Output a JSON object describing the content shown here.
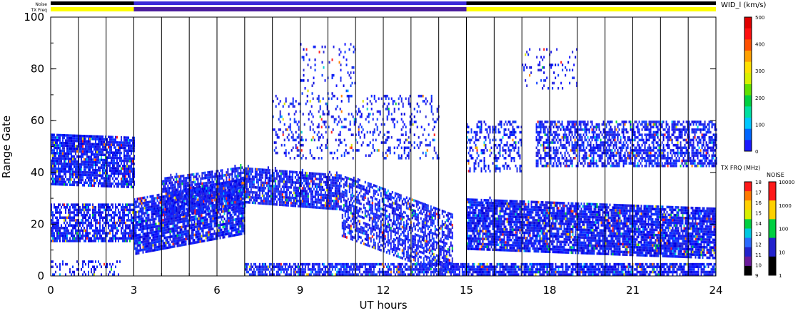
{
  "header": {
    "noise_label": "Noise",
    "txfreq_label": "TX Freq",
    "param_label": "WID_l  (km/s)"
  },
  "colorbars": {
    "param": {
      "ticks": [
        "500",
        "400",
        "300",
        "200",
        "100",
        "0"
      ],
      "colors": [
        "#1a1aff",
        "#0066ff",
        "#00c8ff",
        "#00e0a0",
        "#00d040",
        "#60e000",
        "#d8f000",
        "#ffe000",
        "#ffa000",
        "#ff5000",
        "#ff1010",
        "#e00000"
      ]
    },
    "txfrq": {
      "title": "TX FRQ (MHz)",
      "ticks": [
        "18",
        "17",
        "16",
        "15",
        "14",
        "13",
        "12",
        "11",
        "10",
        "9"
      ],
      "colors": [
        "#000000",
        "#6a1a9a",
        "#2222cc",
        "#2a6aff",
        "#00c8e0",
        "#00d040",
        "#d8f000",
        "#ffd000",
        "#ff7a00",
        "#ff1a1a"
      ]
    },
    "noise": {
      "title": "NOISE",
      "ticks": [
        "10000",
        "1000",
        "100",
        "10",
        "1"
      ],
      "colors": [
        "#000000",
        "#2222cc",
        "#00d040",
        "#ffd000",
        "#ff1a1a"
      ]
    }
  },
  "chart_data": {
    "type": "heatmap",
    "title": "",
    "xlabel": "UT hours",
    "ylabel": "Range Gate",
    "xlim": [
      0,
      24
    ],
    "ylim": [
      0,
      100
    ],
    "xticks": [
      0,
      3,
      6,
      9,
      12,
      15,
      18,
      21,
      24
    ],
    "yticks": [
      0,
      20,
      40,
      60,
      80,
      100
    ],
    "scan_boundaries_ut": [
      1,
      2,
      3,
      4,
      5,
      6,
      7,
      8,
      9,
      10,
      11,
      12,
      13,
      14,
      15,
      16,
      17,
      18,
      19,
      20,
      21,
      22,
      23
    ],
    "tx_freq_segments": [
      {
        "start": 0,
        "end": 3,
        "color": "#ffff00"
      },
      {
        "start": 3,
        "end": 15,
        "color": "#4b1d9e"
      },
      {
        "start": 15,
        "end": 24,
        "color": "#ffff00"
      }
    ],
    "noise_segments": [
      {
        "start": 0,
        "end": 3,
        "color": "#000000"
      },
      {
        "start": 3,
        "end": 15,
        "color": "#3b2bd8"
      },
      {
        "start": 15,
        "end": 24,
        "color": "#000000"
      }
    ],
    "echo_regions": [
      {
        "t0": 0,
        "t1": 3,
        "g0": 35,
        "g1": 55,
        "density": 0.85,
        "slope": -0.4
      },
      {
        "t0": 0,
        "t1": 3,
        "g0": 13,
        "g1": 28,
        "density": 0.7,
        "slope": 0
      },
      {
        "t0": 0,
        "t1": 2.5,
        "g0": 0,
        "g1": 6,
        "density": 0.25,
        "slope": 0
      },
      {
        "t0": 3,
        "t1": 7,
        "g0": 8,
        "g1": 30,
        "density": 0.85,
        "slope": 2
      },
      {
        "t0": 4,
        "t1": 7,
        "g0": 22,
        "g1": 38,
        "density": 0.75,
        "slope": 1.5
      },
      {
        "t0": 7,
        "t1": 10.5,
        "g0": 28,
        "g1": 42,
        "density": 0.8,
        "slope": -0.8
      },
      {
        "t0": 7,
        "t1": 15,
        "g0": 0,
        "g1": 5,
        "density": 0.7,
        "slope": 0
      },
      {
        "t0": 10.5,
        "t1": 14.5,
        "g0": 15,
        "g1": 40,
        "density": 0.6,
        "slope": -4
      },
      {
        "t0": 8,
        "t1": 14,
        "g0": 45,
        "g1": 70,
        "density": 0.18,
        "slope": 0
      },
      {
        "t0": 9,
        "t1": 11,
        "g0": 70,
        "g1": 90,
        "density": 0.12,
        "slope": 0
      },
      {
        "t0": 15,
        "t1": 24,
        "g0": 10,
        "g1": 30,
        "density": 0.85,
        "slope": -0.4
      },
      {
        "t0": 15,
        "t1": 24,
        "g0": 0,
        "g1": 5,
        "density": 0.8,
        "slope": 0
      },
      {
        "t0": 17.5,
        "t1": 24,
        "g0": 42,
        "g1": 60,
        "density": 0.6,
        "slope": 0
      },
      {
        "t0": 17,
        "t1": 19,
        "g0": 72,
        "g1": 88,
        "density": 0.12,
        "slope": 0
      },
      {
        "t0": 15,
        "t1": 17,
        "g0": 40,
        "g1": 60,
        "density": 0.35,
        "slope": 0
      }
    ]
  }
}
